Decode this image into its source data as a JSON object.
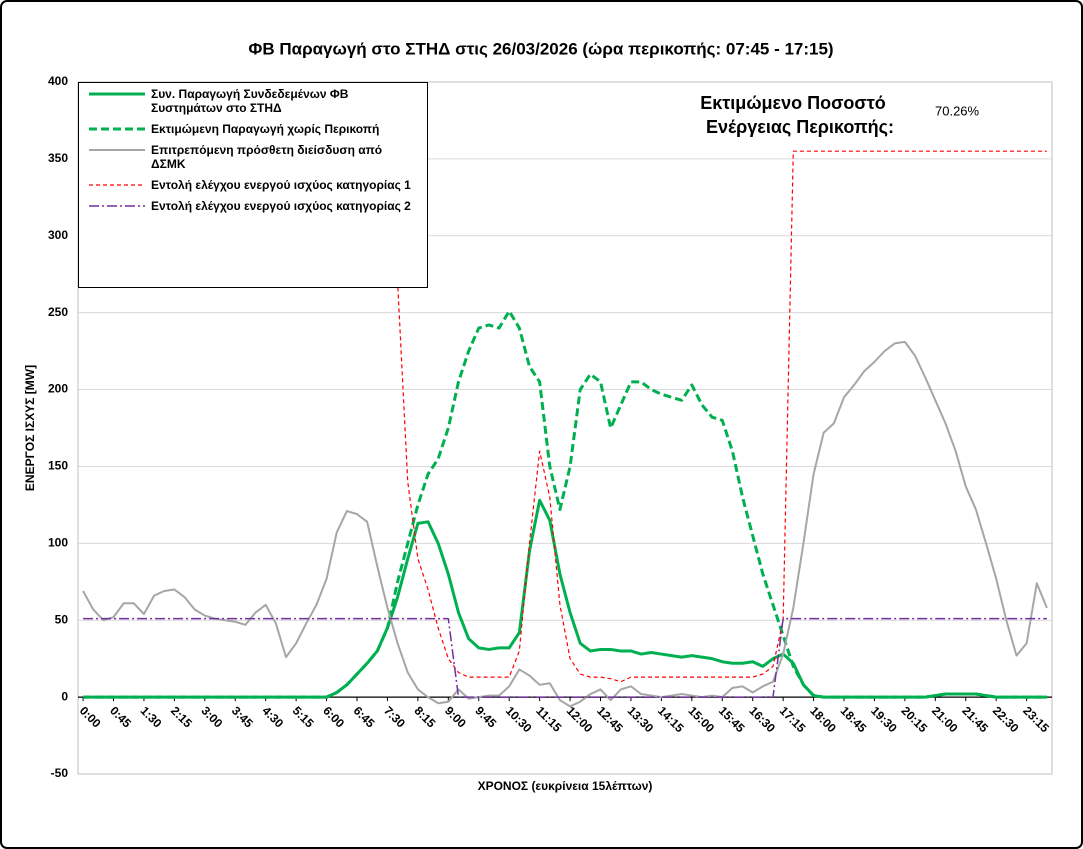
{
  "chart_data": {
    "type": "line",
    "title": "ΦΒ Παραγωγή στο ΣΤΗΔ στις 26/03/2026 (ώρα περικοπής: 07:45 - 17:15)",
    "y_label": "ΕΝΕΡΓΟΣ ΙΣΧΥΣ [MW]",
    "x_label": "ΧΡΟΝΟΣ (ευκρίνεια 15λέπτων)",
    "annotation": {
      "text": [
        "Εκτιμώμενο Ποσοστό",
        "Ενέργειας Περικοπής:"
      ],
      "value": "70.26%"
    },
    "categories": [
      "0:00",
      null,
      null,
      "0:45",
      null,
      null,
      "1:30",
      null,
      null,
      "2:15",
      null,
      null,
      "3:00",
      null,
      null,
      "3:45",
      null,
      null,
      "4:30",
      null,
      null,
      "5:15",
      null,
      null,
      "6:00",
      null,
      null,
      "6:45",
      null,
      null,
      "7:30",
      null,
      null,
      "8:15",
      null,
      null,
      "9:00",
      null,
      null,
      "9:45",
      null,
      null,
      "10:30",
      null,
      null,
      "11:15",
      null,
      null,
      "12:00",
      null,
      null,
      "12:45",
      null,
      null,
      "13:30",
      null,
      null,
      "14:15",
      null,
      null,
      "15:00",
      null,
      null,
      "15:45",
      null,
      null,
      "16:30",
      null,
      null,
      "17:15",
      null,
      null,
      "18:00",
      null,
      null,
      "18:45",
      null,
      null,
      "19:30",
      null,
      null,
      "20:15",
      null,
      null,
      "21:00",
      null,
      null,
      "21:45",
      null,
      null,
      "22:30",
      null,
      null,
      "23:15",
      null,
      null
    ],
    "ylim": [
      -50,
      400
    ],
    "yticks": [
      -50,
      0,
      50,
      100,
      150,
      200,
      250,
      300,
      350,
      400
    ],
    "grid": true,
    "legend": "upper left",
    "series": [
      {
        "name": "Συν. Παραγωγή Συνδεδεμένων ΦΒ Συστημάτων στο ΣΤΗΔ",
        "color": "#00b050",
        "line_style": "solid",
        "width": 3,
        "values": [
          0,
          0,
          0,
          0,
          0,
          0,
          0,
          0,
          0,
          0,
          0,
          0,
          0,
          0,
          0,
          0,
          0,
          0,
          0,
          0,
          0,
          0,
          0,
          0,
          0,
          3,
          8,
          15,
          22,
          30,
          45,
          65,
          90,
          113,
          114,
          100,
          80,
          55,
          38,
          32,
          31,
          32,
          32,
          42,
          95,
          128,
          115,
          80,
          55,
          35,
          30,
          31,
          31,
          30,
          30,
          28,
          29,
          28,
          27,
          26,
          27,
          26,
          25,
          23,
          22,
          22,
          23,
          20,
          25,
          28,
          22,
          8,
          1,
          0,
          0,
          0,
          0,
          0,
          0,
          0,
          0,
          0,
          0,
          0,
          1,
          2,
          2,
          2,
          2,
          1,
          0,
          0,
          0,
          0,
          0,
          0
        ]
      },
      {
        "name": "Εκτιμώμενη Παραγωγή χωρίς Περικοπή",
        "color": "#00b050",
        "line_style": "dashed",
        "width": 3,
        "values": [
          0,
          0,
          0,
          0,
          0,
          0,
          0,
          0,
          0,
          0,
          0,
          0,
          0,
          0,
          0,
          0,
          0,
          0,
          0,
          0,
          0,
          0,
          0,
          0,
          0,
          3,
          8,
          15,
          22,
          30,
          45,
          75,
          100,
          125,
          145,
          155,
          175,
          205,
          225,
          240,
          242,
          240,
          251,
          240,
          215,
          205,
          150,
          122,
          150,
          200,
          210,
          205,
          175,
          190,
          205,
          205,
          200,
          197,
          195,
          193,
          203,
          190,
          182,
          180,
          160,
          130,
          105,
          80,
          60,
          40,
          20,
          8,
          1,
          0,
          0,
          0,
          0,
          0,
          0,
          0,
          0,
          0,
          0,
          0,
          1,
          2,
          2,
          2,
          2,
          1,
          0,
          0,
          0,
          0,
          0,
          0
        ]
      },
      {
        "name": "Επιτρεπόμενη πρόσθετη διείσδυση από ΔΣΜΚ",
        "color": "#a6a6a6",
        "line_style": "solid",
        "width": 2,
        "values": [
          69,
          57,
          50,
          52,
          61,
          61,
          54,
          66,
          69,
          70,
          65,
          57,
          53,
          51,
          50,
          49,
          47,
          55,
          60,
          48,
          26,
          35,
          48,
          60,
          77,
          107,
          121,
          119,
          114,
          85,
          58,
          35,
          16,
          5,
          0,
          -4,
          -3,
          5,
          -1,
          0,
          1,
          1,
          7,
          18,
          14,
          8,
          9,
          -2,
          -6,
          -3,
          2,
          5,
          -2,
          5,
          7,
          2,
          1,
          0,
          1,
          2,
          1,
          0,
          1,
          0,
          6,
          7,
          3,
          7,
          10,
          28,
          58,
          100,
          145,
          172,
          178,
          195,
          203,
          212,
          218,
          225,
          230,
          231,
          222,
          208,
          193,
          178,
          160,
          137,
          122,
          100,
          77,
          50,
          27,
          35,
          74,
          58
        ]
      },
      {
        "name": "Εντολή ελέγχου ενεργού ισχύος κατηγορίας 1",
        "color": "#ff0000",
        "line_style": "dashed",
        "width": 1.2,
        "values": [
          355,
          355,
          355,
          355,
          355,
          355,
          355,
          355,
          355,
          355,
          355,
          355,
          355,
          355,
          355,
          355,
          355,
          355,
          355,
          355,
          355,
          355,
          355,
          355,
          355,
          355,
          355,
          355,
          355,
          355,
          355,
          270,
          140,
          90,
          70,
          45,
          25,
          16,
          13,
          13,
          13,
          13,
          13,
          30,
          100,
          160,
          130,
          60,
          25,
          15,
          13,
          13,
          12,
          10,
          13,
          13,
          13,
          13,
          13,
          13,
          13,
          13,
          13,
          13,
          13,
          13,
          13,
          15,
          20,
          50,
          355,
          355,
          355,
          355,
          355,
          355,
          355,
          355,
          355,
          355,
          355,
          355,
          355,
          355,
          355,
          355,
          355,
          355,
          355,
          355,
          355,
          355,
          355,
          355,
          355,
          355
        ]
      },
      {
        "name": "Εντολή ελέγχου ενεργού ισχύος κατηγορίας 2",
        "color": "#7030a0",
        "line_style": "dashdot",
        "width": 1.5,
        "values": [
          51,
          51,
          51,
          51,
          51,
          51,
          51,
          51,
          51,
          51,
          51,
          51,
          51,
          51,
          51,
          51,
          51,
          51,
          51,
          51,
          51,
          51,
          51,
          51,
          51,
          51,
          51,
          51,
          51,
          51,
          51,
          51,
          51,
          51,
          51,
          51,
          51,
          0,
          0,
          0,
          0,
          0,
          0,
          0,
          0,
          0,
          0,
          0,
          0,
          0,
          0,
          0,
          0,
          0,
          0,
          0,
          0,
          0,
          0,
          0,
          0,
          0,
          0,
          0,
          0,
          0,
          0,
          0,
          0,
          51,
          51,
          51,
          51,
          51,
          51,
          51,
          51,
          51,
          51,
          51,
          51,
          51,
          51,
          51,
          51,
          51,
          51,
          51,
          51,
          51,
          51,
          51,
          51,
          51,
          51,
          51
        ]
      }
    ]
  }
}
